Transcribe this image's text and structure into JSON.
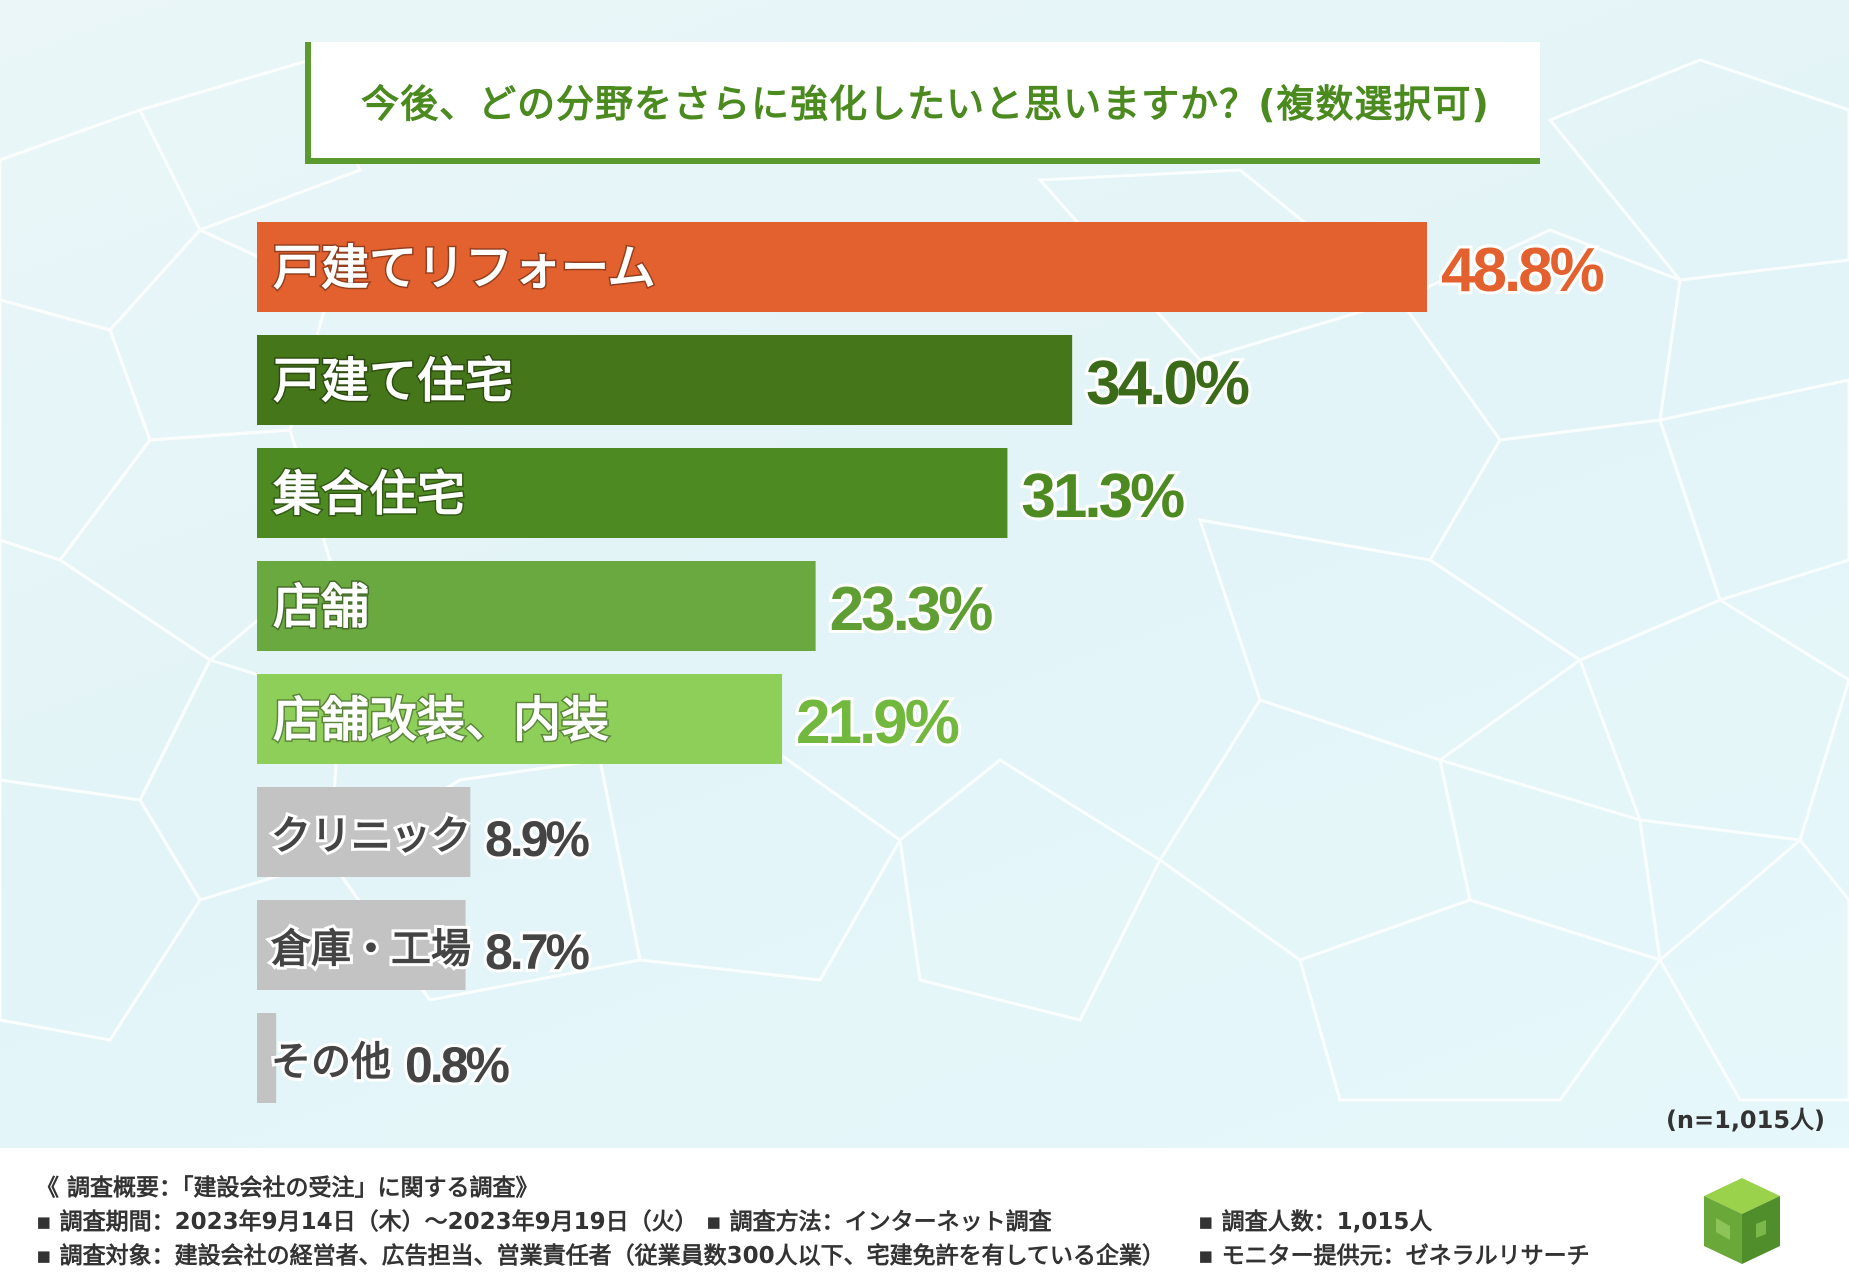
{
  "title": "今後、どの分野をさらに強化したいと思いますか？(複数選択可)",
  "note": "(n=1,015人)",
  "chart_data": {
    "type": "bar",
    "orientation": "horizontal",
    "title": "今後、どの分野をさらに強化したいと思いますか？(複数選択可)",
    "categories": [
      "戸建てリフォーム",
      "戸建て住宅",
      "集合住宅",
      "店舗",
      "店舗改装、内装",
      "クリニック",
      "倉庫・工場",
      "その他"
    ],
    "values": [
      48.8,
      34.0,
      31.3,
      23.3,
      21.9,
      8.9,
      8.7,
      0.8
    ],
    "value_labels": [
      "48.8%",
      "34.0%",
      "31.3%",
      "23.3%",
      "21.9%",
      "8.9%",
      "8.7%",
      "0.8%"
    ],
    "colors": [
      "#e2612f",
      "#46761a",
      "#4e8a22",
      "#6aa840",
      "#8ecf5a",
      "#c3c3c3",
      "#c3c3c3",
      "#c3c3c3"
    ],
    "value_colors": [
      "#e2612f",
      "#3b6a18",
      "#4e8a22",
      "#5e9e32",
      "#72b83e",
      "#444444",
      "#444444",
      "#444444"
    ],
    "label_colors": [
      "#ffffff",
      "#ffffff",
      "#ffffff",
      "#ffffff",
      "#ffffff",
      "#444444",
      "#444444",
      "#444444"
    ],
    "label_placement": [
      "inside",
      "inside",
      "inside",
      "inside",
      "inside",
      "overflow",
      "overflow",
      "outside"
    ],
    "xlim": [
      0,
      48.8
    ],
    "unit": "%"
  },
  "footer": {
    "summary": "《 調査概要：「建設会社の受注」に関する調査》",
    "period": "▪ 調査期間：2023年9月14日（木）～2023年9月19日（火）",
    "method": "▪ 調査方法：インターネット調査",
    "count": "▪ 調査人数：1,015人",
    "target": "▪ 調査対象：建設会社の経営者、広告担当、営業責任者（従業員数300人以下、宅建免許を有している企業）",
    "provider": "▪ モニター提供元：ゼネラルリサーチ"
  },
  "logo_icon": "green-cube-logo-icon"
}
